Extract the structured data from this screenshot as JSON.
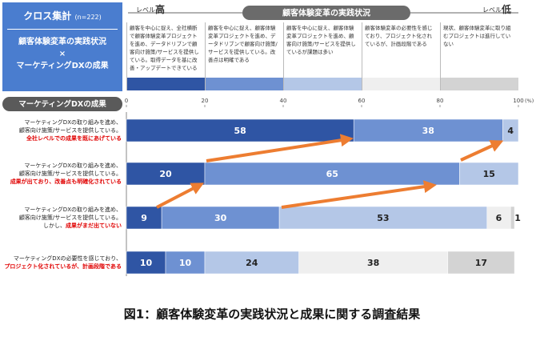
{
  "chart_data": {
    "type": "bar",
    "orientation": "horizontal",
    "stacked": true,
    "title": "図1：顧客体験変革の実践状況と成果に関する調査結果",
    "panel_title": "クロス集計",
    "sample": "(n=222)",
    "panel_subtitle_lines": [
      "顧客体験変革の実践状況",
      "×",
      "マーケティングDXの成果"
    ],
    "x_axis_label": "顧客体験変革の実践状況",
    "level_high": [
      "レベル",
      "高"
    ],
    "level_low": [
      "レベル",
      "低"
    ],
    "y_axis_label": "マーケティングDXの成果",
    "x_unit": "(%)",
    "xlim": [
      0,
      100
    ],
    "xticks": [
      0,
      20,
      40,
      60,
      80,
      100
    ],
    "grid": false,
    "categories": [
      {
        "lines": [
          "マーケティングDXの取り組みを進め、",
          "顧客向け施策/サービスを提供している。"
        ],
        "result": "全社レベルでの成果を既にあげている"
      },
      {
        "lines": [
          "マーケティングDXの取り組みを進め、",
          "顧客向け施策/サービスを提供している。"
        ],
        "result": "成果が出ており、改善点も明確化されている"
      },
      {
        "lines": [
          "マーケティングDXの取り組みを進め、",
          "顧客向け施策/サービスを提供している。",
          "しかし、"
        ],
        "result": "成果がまだ出ていない"
      },
      {
        "lines": [
          "マーケティングDXの必要性を感じており、"
        ],
        "result": "プロジェクト化されているが、計画段階である"
      }
    ],
    "series": [
      {
        "name": "顧客を中心に捉え、全社横断で顧客体験変革プロジェクトを進め、データドリブンで顧客向け施策/サービスを提供している。取得データを基に改善・アップデートできている",
        "color": "#2f55a4",
        "values": [
          58,
          20,
          9,
          10
        ]
      },
      {
        "name": "顧客を中心に捉え、顧客体験変革プロジェクトを進め、データドリブンで顧客向け施策/サービスを提供している。改善点は明確である",
        "color": "#6e91d2",
        "values": [
          38,
          65,
          30,
          10
        ]
      },
      {
        "name": "顧客を中心に捉え、顧客体験変革プロジェクトを進め、顧客向け施策/サービスを提供しているが課題は多い",
        "color": "#b4c7e7",
        "values": [
          4,
          15,
          53,
          24
        ]
      },
      {
        "name": "顧客体験変革の必要性を感じており、プロジェクト化されているが、計画段階である",
        "color": "#efefef",
        "values": [
          null,
          null,
          6,
          38
        ]
      },
      {
        "name": "現状、顧客体験変革に取り組むプロジェクトは進行していない",
        "color": "#d3d3d3",
        "values": [
          null,
          null,
          1,
          17
        ]
      }
    ]
  }
}
